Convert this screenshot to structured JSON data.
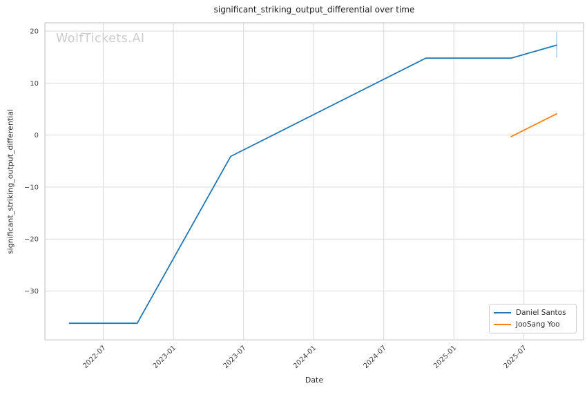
{
  "chart_data": {
    "type": "line",
    "title": "significant_striking_output_differential over time",
    "xlabel": "Date",
    "ylabel": "significant_striking_output_differential",
    "watermark": "WolfTickets.AI",
    "grid": true,
    "legend_position": "lower right",
    "x_encoding": "months since 2022-01",
    "xlim": [
      1.0,
      47.1
    ],
    "ylim": [
      -39.4,
      21.6
    ],
    "x_ticks": [
      {
        "x": 6,
        "label": "2022-07"
      },
      {
        "x": 12,
        "label": "2023-01"
      },
      {
        "x": 18,
        "label": "2023-07"
      },
      {
        "x": 24,
        "label": "2024-01"
      },
      {
        "x": 30,
        "label": "2024-07"
      },
      {
        "x": 36,
        "label": "2025-01"
      },
      {
        "x": 42,
        "label": "2025-07"
      }
    ],
    "y_ticks": [
      {
        "y": 20,
        "label": "20"
      },
      {
        "y": 10,
        "label": "10"
      },
      {
        "y": 0,
        "label": "0"
      },
      {
        "y": -10,
        "label": "−10"
      },
      {
        "y": -20,
        "label": "−20"
      },
      {
        "y": -30,
        "label": "−30"
      }
    ],
    "series": [
      {
        "name": "Daniel Santos",
        "color": "#1f77b4",
        "error_color": "#a9cbe8",
        "points": [
          {
            "date": "2022-04",
            "x": 3.1,
            "y": -36.2
          },
          {
            "date": "2022-10",
            "x": 8.9,
            "y": -36.2
          },
          {
            "date": "2023-06",
            "x": 16.9,
            "y": -4.1
          },
          {
            "date": "2024-11",
            "x": 33.6,
            "y": 14.8
          },
          {
            "date": "2025-06",
            "x": 40.9,
            "y": 14.8
          },
          {
            "date": "2025-10",
            "x": 44.8,
            "y": 17.3,
            "yerr_low": 14.9,
            "yerr_high": 19.8
          }
        ]
      },
      {
        "name": "JooSang Yoo",
        "color": "#ff7f0e",
        "points": [
          {
            "date": "2025-06",
            "x": 40.9,
            "y": -0.3
          },
          {
            "date": "2025-10",
            "x": 44.8,
            "y": 4.1
          }
        ]
      }
    ],
    "colors": {
      "background": "#ffffff",
      "grid": "#d9d9d9",
      "spine": "#c9c9c9",
      "tick_text": "#3d3d3d",
      "text": "#2b2b2b"
    }
  }
}
